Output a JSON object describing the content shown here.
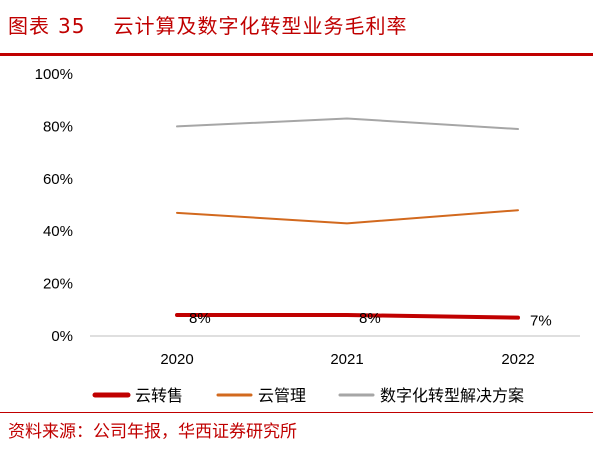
{
  "header": {
    "figure_label": "图表",
    "figure_number": "35",
    "title": "云计算及数字化转型业务毛利率"
  },
  "footer": {
    "source": "资料来源：公司年报，华西证券研究所"
  },
  "colors": {
    "brand": "#c00000",
    "series": [
      "#c00000",
      "#d2691e",
      "#a6a6a6"
    ]
  },
  "chart_data": {
    "type": "line",
    "categories": [
      "2020",
      "2021",
      "2022"
    ],
    "series": [
      {
        "name": "云转售",
        "values": [
          8,
          8,
          7
        ],
        "data_labels": [
          "8%",
          "8%",
          "7%"
        ]
      },
      {
        "name": "云管理",
        "values": [
          47,
          43,
          48
        ]
      },
      {
        "name": "数字化转型解决方案",
        "values": [
          80,
          83,
          79
        ]
      }
    ],
    "yticks": [
      "0%",
      "20%",
      "40%",
      "60%",
      "80%",
      "100%"
    ],
    "ylim": [
      0,
      100
    ],
    "grid": false,
    "legend": "bottom"
  }
}
